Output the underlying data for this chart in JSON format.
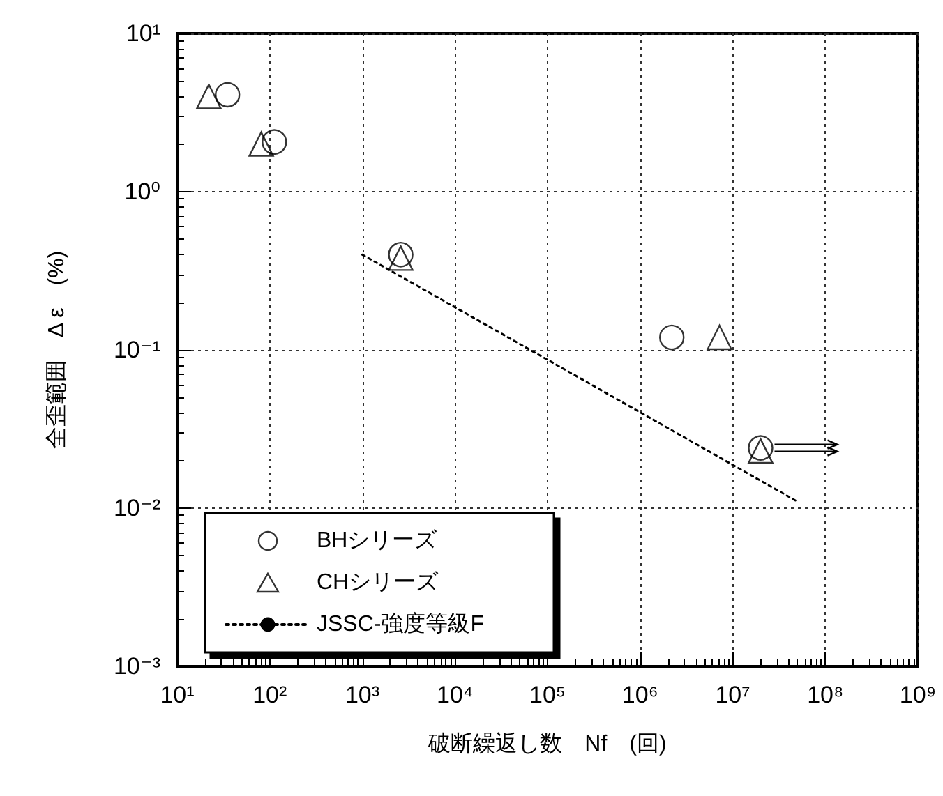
{
  "chart_data": {
    "type": "scatter",
    "xlabel": "破断繰返し数　Nf　(回)",
    "ylabel": "全歪範囲　Δ ε　(%)",
    "log": "xy",
    "grid": true,
    "legend": "bottom left",
    "xlim": [
      10,
      1000000000
    ],
    "xticks": [
      {
        "value": 10,
        "label": "10¹"
      },
      {
        "value": 100,
        "label": "10²"
      },
      {
        "value": 1000,
        "label": "10³"
      },
      {
        "value": 10000,
        "label": "10⁴"
      },
      {
        "value": 100000,
        "label": "10⁵"
      },
      {
        "value": 1000000,
        "label": "10⁶"
      },
      {
        "value": 10000000,
        "label": "10⁷"
      },
      {
        "value": 100000000,
        "label": "10⁸"
      },
      {
        "value": 1000000000,
        "label": "10⁹"
      }
    ],
    "ylim": [
      0.001,
      10
    ],
    "yticks": [
      {
        "value": 0.001,
        "label": "10⁻³"
      },
      {
        "value": 0.01,
        "label": "10⁻²"
      },
      {
        "value": 0.1,
        "label": "10⁻¹"
      },
      {
        "value": 1,
        "label": "10⁰"
      },
      {
        "value": 10,
        "label": "10¹"
      }
    ],
    "series": [
      {
        "name": "BHシリーズ",
        "marker": "circle",
        "color": "#000000",
        "x": [
          35,
          112,
          2600,
          2200000,
          20000000
        ],
        "values": [
          4.1,
          2.06,
          0.4,
          0.12,
          0.024
        ]
      },
      {
        "name": "CHシリーズ",
        "marker": "triangle",
        "color": "#000000",
        "x": [
          22,
          81,
          2600,
          7200000,
          20000000
        ],
        "values": [
          4.0,
          2.0,
          0.38,
          0.12,
          0.023
        ]
      },
      {
        "name": "JSSC-強度等級F",
        "type": "line",
        "marker": "none",
        "line_style": "dotted",
        "color": "#000000",
        "x": [
          1000,
          50000000
        ],
        "values": [
          0.4,
          0.011
        ]
      }
    ]
  }
}
